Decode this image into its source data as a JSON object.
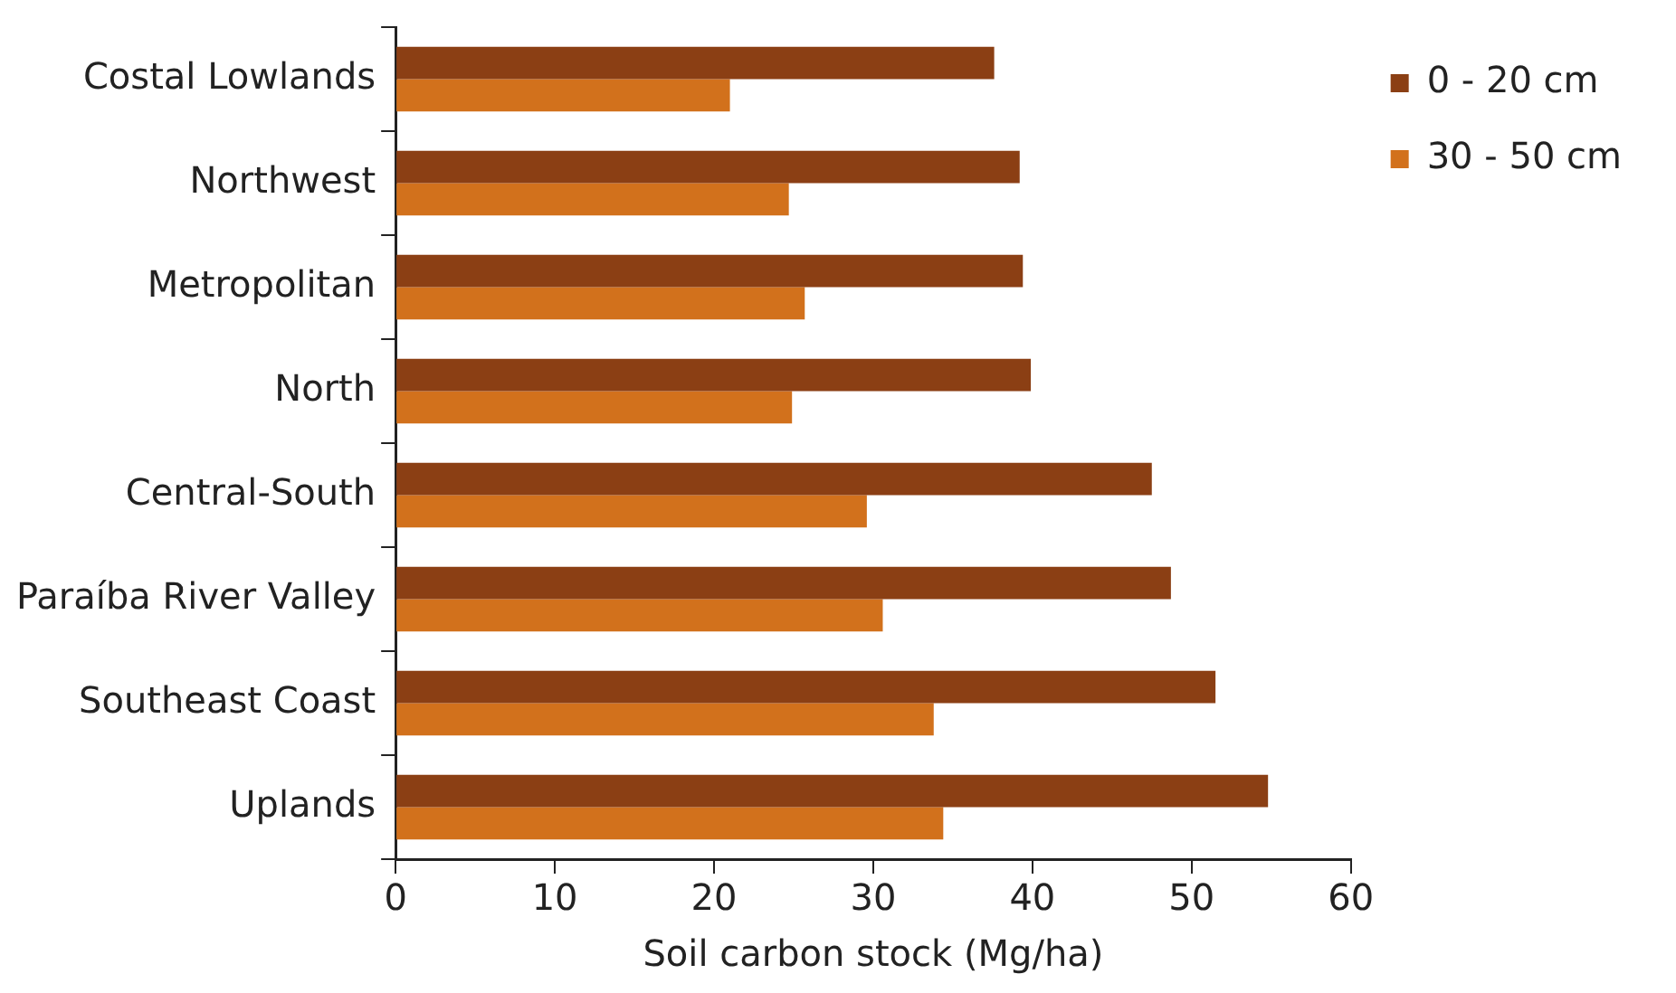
{
  "chart_data": {
    "type": "bar",
    "orientation": "horizontal",
    "xlabel": "Soil carbon stock (Mg/ha)",
    "categories": [
      "Costal Lowlands",
      "Northwest",
      "Metropolitan",
      "North",
      "Central-South",
      "Paraíba River Valley",
      "Southeast Coast",
      "Uplands"
    ],
    "series": [
      {
        "name": "0 - 20 cm",
        "color": "#8b3f14",
        "values": [
          37.6,
          39.2,
          39.4,
          39.9,
          47.5,
          48.7,
          51.5,
          54.8
        ]
      },
      {
        "name": "30 - 50 cm",
        "color": "#d2711c",
        "values": [
          21.0,
          24.7,
          25.7,
          24.9,
          29.6,
          30.6,
          33.8,
          34.4
        ]
      }
    ],
    "xlim": [
      0,
      60
    ],
    "xticks": [
      0,
      10,
      20,
      30,
      40,
      50,
      60
    ],
    "grid": false,
    "legend": "top right"
  }
}
